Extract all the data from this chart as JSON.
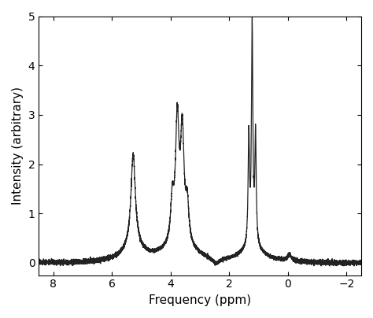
{
  "title": "",
  "xlabel": "Frequency (ppm)",
  "ylabel": "Intensity (arbitrary)",
  "xlim": [
    8.5,
    -2.5
  ],
  "ylim": [
    -0.25,
    5.0
  ],
  "xticks": [
    8,
    6,
    4,
    2,
    0,
    -2
  ],
  "yticks": [
    0,
    1,
    2,
    3,
    4,
    5
  ],
  "background_color": "#ffffff",
  "line_color": "#222222",
  "line_width": 0.9,
  "noise_amplitude": 0.018,
  "figsize": [
    4.74,
    4.04
  ],
  "dpi": 100
}
